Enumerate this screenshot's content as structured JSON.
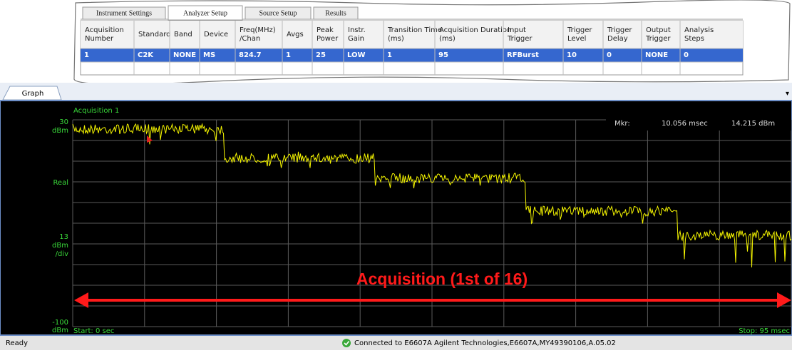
{
  "tabs": [
    "Instrument Settings",
    "Analyzer Setup",
    "Source Setup",
    "Results"
  ],
  "table": {
    "headers": [
      "Acquisition Number",
      "Standard",
      "Band",
      "Device",
      "Freq(MHz) /Chan",
      "Avgs",
      "Peak Power",
      "Instr. Gain",
      "Transition Time (ms)",
      "Acquisition Duration (ms)",
      "Input Trigger",
      "Trigger Level",
      "Trigger Delay",
      "Output Trigger",
      "Analysis Steps"
    ],
    "rows": [
      [
        "1",
        "C2K",
        "NONE",
        "MS",
        "824.7",
        "1",
        "25",
        "LOW",
        "1",
        "95",
        "RFBurst",
        "10",
        "0",
        "NONE",
        "0"
      ]
    ]
  },
  "graph": {
    "tab": "Graph",
    "trace_label": "Acquisition 1",
    "y_top": "30",
    "y_top_unit": "dBm",
    "y_mode": "Real",
    "y_scale": "13",
    "y_scale_unit": "dBm",
    "y_scale_per": "/div",
    "y_bottom": "-100",
    "y_bottom_unit": "dBm",
    "marker_label": "Mkr:",
    "marker_time": "10.056 msec",
    "marker_level": "14.215 dBm",
    "start": "Start: 0 sec",
    "stop": "Stop: 95 msec",
    "annotation": "Acquisition (1st of 16)"
  },
  "status": {
    "left": "Ready",
    "connection": "Connected to E6607A Agilent Technologies,E6607A,MY49390106,A.05.02"
  }
}
